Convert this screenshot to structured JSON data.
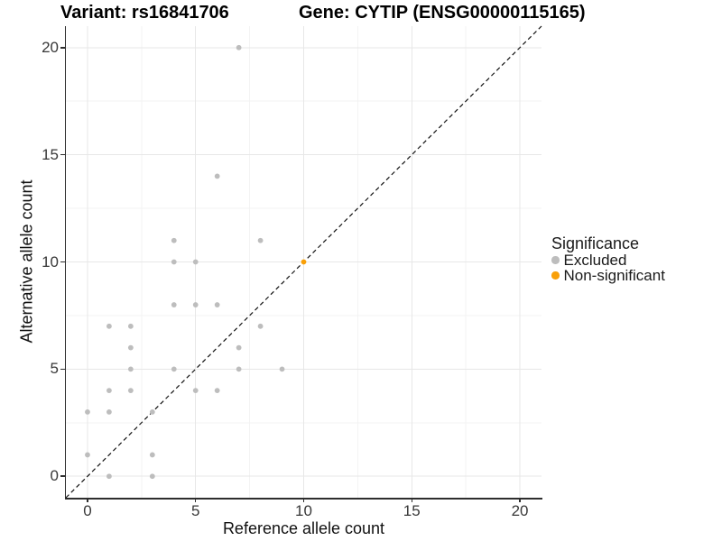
{
  "titles": {
    "variant": "Variant: rs16841706",
    "gene": "Gene: CYTIP (ENSG00000115165)"
  },
  "legend": {
    "title": "Significance",
    "items": [
      {
        "label": "Excluded",
        "color": "#BDBDBD"
      },
      {
        "label": "Non-significant",
        "color": "#F9A008"
      }
    ]
  },
  "colors": {
    "background": "#FFFFFF",
    "axis_line": "#2E2E2E",
    "major_grid": "#E7E7E7",
    "minor_grid": "#F3F3F3",
    "reference_line": "#121212",
    "excluded_point": "#BDBDBD",
    "non_significant_point": "#F9A008",
    "tick_text": "#383838"
  },
  "chart_data": {
    "type": "scatter",
    "title": "Variant: rs16841706   Gene: CYTIP (ENSG00000115165)",
    "xlabel": "Reference allele count",
    "ylabel": "Alternative allele count",
    "xlim": [
      -1,
      21
    ],
    "ylim": [
      -1,
      21
    ],
    "x_ticks": [
      0,
      5,
      10,
      15,
      20
    ],
    "y_ticks": [
      0,
      5,
      10,
      15,
      20
    ],
    "x_minor_gridlines": [
      2.5,
      7.5,
      12.5,
      17.5
    ],
    "y_minor_gridlines": [
      2.5,
      7.5,
      12.5,
      17.5
    ],
    "grid": true,
    "legend_position": "right",
    "reference_line": {
      "style": "dashed",
      "from": [
        -1,
        -1
      ],
      "to": [
        21,
        21
      ],
      "meaning": "y = x"
    },
    "series": [
      {
        "name": "Excluded",
        "color": "#BDBDBD",
        "points": [
          [
            7,
            20
          ],
          [
            6,
            14
          ],
          [
            4,
            11
          ],
          [
            8,
            11
          ],
          [
            4,
            10
          ],
          [
            5,
            10
          ],
          [
            4,
            8
          ],
          [
            5,
            8
          ],
          [
            6,
            8
          ],
          [
            1,
            7
          ],
          [
            2,
            7
          ],
          [
            8,
            7
          ],
          [
            2,
            6
          ],
          [
            7,
            6
          ],
          [
            2,
            5
          ],
          [
            4,
            5
          ],
          [
            7,
            5
          ],
          [
            9,
            5
          ],
          [
            1,
            4
          ],
          [
            2,
            4
          ],
          [
            5,
            4
          ],
          [
            6,
            4
          ],
          [
            0,
            3
          ],
          [
            1,
            3
          ],
          [
            3,
            3
          ],
          [
            0,
            1
          ],
          [
            3,
            1
          ],
          [
            1,
            0
          ],
          [
            3,
            0
          ]
        ]
      },
      {
        "name": "Non-significant",
        "color": "#F9A008",
        "points": [
          [
            10,
            10
          ]
        ]
      }
    ]
  }
}
